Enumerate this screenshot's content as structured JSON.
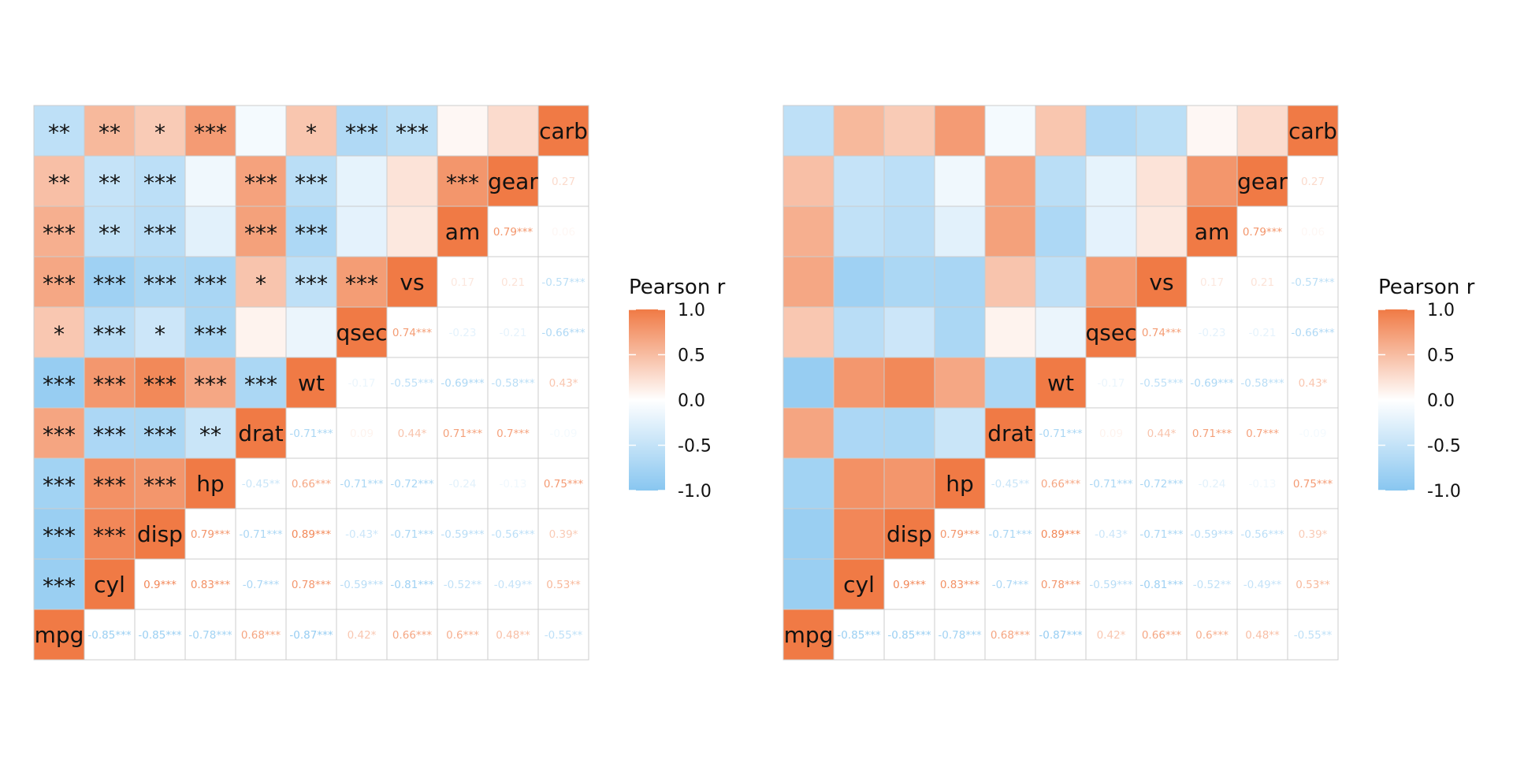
{
  "chart_data": [
    {
      "type": "heatmap",
      "variables": [
        "mpg",
        "cyl",
        "disp",
        "hp",
        "drat",
        "wt",
        "qsec",
        "vs",
        "am",
        "gear",
        "carb"
      ],
      "lower_triangle": "stars",
      "upper_triangle": "labels",
      "matrix": [
        [
          1.0,
          -0.85,
          -0.85,
          -0.78,
          0.68,
          -0.87,
          0.42,
          0.66,
          0.6,
          0.48,
          -0.55
        ],
        [
          -0.85,
          1.0,
          0.9,
          0.83,
          -0.7,
          0.78,
          -0.59,
          -0.81,
          -0.52,
          -0.49,
          0.53
        ],
        [
          -0.85,
          0.9,
          1.0,
          0.79,
          -0.71,
          0.89,
          -0.43,
          -0.71,
          -0.59,
          -0.56,
          0.39
        ],
        [
          -0.78,
          0.83,
          0.79,
          1.0,
          -0.45,
          0.66,
          -0.71,
          -0.72,
          -0.24,
          -0.13,
          0.75
        ],
        [
          0.68,
          -0.7,
          -0.71,
          -0.45,
          1.0,
          -0.71,
          0.09,
          0.44,
          0.71,
          0.7,
          -0.09
        ],
        [
          -0.87,
          0.78,
          0.89,
          0.66,
          -0.71,
          1.0,
          -0.17,
          -0.55,
          -0.69,
          -0.58,
          0.43
        ],
        [
          0.42,
          -0.59,
          -0.43,
          -0.71,
          0.09,
          -0.17,
          1.0,
          0.74,
          -0.23,
          -0.21,
          -0.66
        ],
        [
          0.66,
          -0.81,
          -0.71,
          -0.72,
          0.44,
          -0.55,
          0.74,
          1.0,
          0.17,
          0.21,
          -0.57
        ],
        [
          0.6,
          -0.52,
          -0.59,
          -0.24,
          0.71,
          -0.69,
          -0.23,
          0.17,
          1.0,
          0.79,
          0.06
        ],
        [
          0.48,
          -0.49,
          -0.56,
          -0.13,
          0.7,
          -0.58,
          -0.21,
          0.21,
          0.79,
          1.0,
          0.27
        ],
        [
          -0.55,
          0.53,
          0.39,
          0.75,
          -0.09,
          0.43,
          -0.66,
          -0.57,
          0.06,
          0.27,
          1.0
        ]
      ],
      "upper_labels": [
        [
          "",
          "-0.85***",
          "-0.85***",
          "-0.78***",
          "0.68***",
          "-0.87***",
          "0.42*",
          "0.66***",
          "0.6***",
          "0.48**",
          "-0.55**"
        ],
        [
          "",
          "",
          "0.9***",
          "0.83***",
          "-0.7***",
          "0.78***",
          "-0.59***",
          "-0.81***",
          "-0.52**",
          "-0.49**",
          "0.53**"
        ],
        [
          "",
          "",
          "",
          "0.79***",
          "-0.71***",
          "0.89***",
          "-0.43*",
          "-0.71***",
          "-0.59***",
          "-0.56***",
          "0.39*"
        ],
        [
          "",
          "",
          "",
          "",
          "-0.45**",
          "0.66***",
          "-0.71***",
          "-0.72***",
          "-0.24",
          "-0.13",
          "0.75***"
        ],
        [
          "",
          "",
          "",
          "",
          "",
          "-0.71***",
          "0.09",
          "0.44*",
          "0.71***",
          "0.7***",
          "-0.09"
        ],
        [
          "",
          "",
          "",
          "",
          "",
          "",
          "-0.17",
          "-0.55***",
          "-0.69***",
          "-0.58***",
          "0.43*"
        ],
        [
          "",
          "",
          "",
          "",
          "",
          "",
          "",
          "0.74***",
          "-0.23",
          "-0.21",
          "-0.66***"
        ],
        [
          "",
          "",
          "",
          "",
          "",
          "",
          "",
          "",
          "0.17",
          "0.21",
          "-0.57***"
        ],
        [
          "",
          "",
          "",
          "",
          "",
          "",
          "",
          "",
          "",
          "0.79***",
          "0.06"
        ],
        [
          "",
          "",
          "",
          "",
          "",
          "",
          "",
          "",
          "",
          "",
          "0.27"
        ],
        [
          "",
          "",
          "",
          "",
          "",
          "",
          "",
          "",
          "",
          "",
          ""
        ]
      ],
      "lower_stars": [
        [
          "",
          "",
          "",
          "",
          "",
          "",
          "",
          "",
          "",
          "",
          ""
        ],
        [
          "***",
          "",
          "",
          "",
          "",
          "",
          "",
          "",
          "",
          "",
          ""
        ],
        [
          "***",
          "***",
          "",
          "",
          "",
          "",
          "",
          "",
          "",
          "",
          ""
        ],
        [
          "***",
          "***",
          "***",
          "",
          "",
          "",
          "",
          "",
          "",
          "",
          ""
        ],
        [
          "***",
          "***",
          "***",
          "**",
          "",
          "",
          "",
          "",
          "",
          "",
          ""
        ],
        [
          "***",
          "***",
          "***",
          "***",
          "***",
          "",
          "",
          "",
          "",
          "",
          ""
        ],
        [
          "*",
          "***",
          "*",
          "***",
          "",
          "",
          "",
          "",
          "",
          "",
          ""
        ],
        [
          "***",
          "***",
          "***",
          "***",
          "*",
          "***",
          "***",
          "",
          "",
          "",
          ""
        ],
        [
          "***",
          "**",
          "***",
          "",
          "***",
          "***",
          "",
          "",
          "",
          "",
          ""
        ],
        [
          "**",
          "**",
          "***",
          "",
          "***",
          "***",
          "",
          "",
          "***",
          "",
          ""
        ],
        [
          "**",
          "**",
          "*",
          "***",
          "",
          "*",
          "***",
          "***",
          "",
          "",
          ""
        ]
      ],
      "legend": {
        "title": "Pearson r",
        "ticks": [
          1.0,
          0.5,
          0.0,
          -0.5,
          -1.0
        ],
        "tick_labels": [
          "1.0",
          "0.5",
          "0.0",
          "-0.5",
          "-1.0"
        ],
        "placement": "right"
      },
      "colors": {
        "high": "#f07a45",
        "mid": "#ffffff",
        "low": "#88c6f0",
        "grid": "#cccccc"
      }
    },
    {
      "type": "heatmap",
      "variables": [
        "mpg",
        "cyl",
        "disp",
        "hp",
        "drat",
        "wt",
        "qsec",
        "vs",
        "am",
        "gear",
        "carb"
      ],
      "lower_triangle": "none",
      "upper_triangle": "labels",
      "legend": {
        "title": "Pearson r",
        "ticks": [
          1.0,
          0.5,
          0.0,
          -0.5,
          -1.0
        ],
        "tick_labels": [
          "1.0",
          "0.5",
          "0.0",
          "-0.5",
          "-1.0"
        ],
        "placement": "right"
      }
    }
  ]
}
